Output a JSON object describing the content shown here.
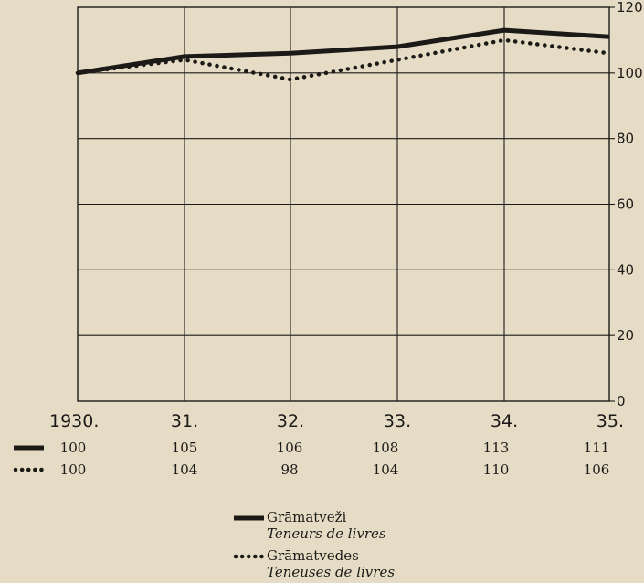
{
  "chart_data": {
    "type": "line",
    "categories": [
      "1930.",
      "31.",
      "32.",
      "33.",
      "34.",
      "35."
    ],
    "series": [
      {
        "name": "Grāmatveži",
        "name_fr": "Teneurs de livres",
        "style": "solid",
        "color": "#1c1a17",
        "values": [
          100,
          105,
          106,
          108,
          113,
          111
        ]
      },
      {
        "name": "Grāmatvedes",
        "name_fr": "Teneuses de livres",
        "style": "dotted",
        "color": "#1c1a17",
        "values": [
          100,
          104,
          98,
          104,
          110,
          106
        ]
      }
    ],
    "y_ticks": [
      "0",
      "20",
      "40",
      "60",
      "80",
      "100",
      "120"
    ],
    "ylim": [
      0,
      120
    ],
    "y_axis_side": "right",
    "grid": true,
    "legend_placement": "bottom-center",
    "title": "",
    "xlabel": "",
    "ylabel": ""
  },
  "table": {
    "rows": [
      {
        "style": "solid",
        "values": [
          "100",
          "105",
          "106",
          "108",
          "113",
          "111"
        ]
      },
      {
        "style": "dotted",
        "values": [
          "100",
          "104",
          "98",
          "104",
          "110",
          "106"
        ]
      }
    ]
  },
  "legend": {
    "items": [
      {
        "style": "solid",
        "name": "Grāmatveži",
        "subtitle": "Teneurs de livres"
      },
      {
        "style": "dotted",
        "name": "Grāmatvedes",
        "subtitle": "Teneuses de livres"
      }
    ]
  }
}
